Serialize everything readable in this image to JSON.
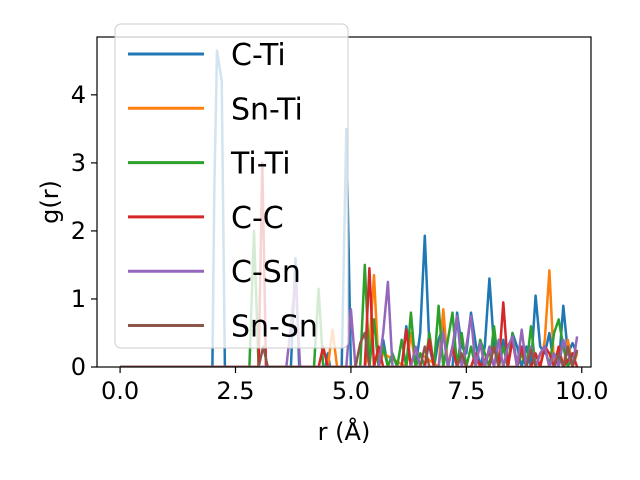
{
  "chart_data": {
    "type": "line",
    "xlabel": "r (Å)",
    "ylabel": "g(r)",
    "xlim": [
      -0.5,
      10.2
    ],
    "ylim": [
      0,
      4.85
    ],
    "xticks": [
      0.0,
      2.5,
      5.0,
      7.5,
      10.0
    ],
    "xtick_labels": [
      "0.0",
      "2.5",
      "5.0",
      "7.5",
      "10.0"
    ],
    "yticks": [
      0,
      1,
      2,
      3,
      4
    ],
    "ytick_labels": [
      "0",
      "1",
      "2",
      "3",
      "4"
    ],
    "grid": false,
    "legend_position": "upper-left",
    "series": [
      {
        "name": "C-Ti",
        "color": "#1f77b4",
        "x": [
          0,
          2.0,
          2.04,
          2.1,
          2.2,
          2.27,
          3.7,
          3.8,
          3.88,
          4.45,
          4.5,
          4.55,
          4.6,
          4.8,
          4.9,
          5.0,
          5.1,
          5.5,
          5.6,
          5.7,
          5.8,
          5.9,
          6.1,
          6.2,
          6.3,
          6.4,
          6.5,
          6.6,
          6.7,
          6.8,
          6.9,
          7.0,
          7.1,
          7.2,
          7.3,
          7.4,
          7.5,
          7.6,
          7.7,
          7.8,
          7.9,
          8.0,
          8.1,
          8.2,
          8.3,
          8.4,
          8.5,
          8.6,
          8.7,
          8.8,
          8.9,
          9.0,
          9.1,
          9.2,
          9.3,
          9.4,
          9.5,
          9.6,
          9.7,
          9.8,
          9.9
        ],
        "y": [
          0,
          0,
          2.6,
          4.65,
          4.2,
          0,
          0,
          1.6,
          0,
          0,
          0.2,
          0,
          0,
          0,
          3.5,
          0,
          0,
          0,
          0,
          0.4,
          0,
          0,
          0,
          0.6,
          0,
          0,
          0.5,
          1.93,
          0.3,
          0,
          0.4,
          0.6,
          0,
          0,
          0.8,
          0.3,
          0.2,
          0.8,
          0.35,
          0,
          0.3,
          1.3,
          0.3,
          0,
          0.4,
          0,
          0.5,
          0.3,
          0,
          0.3,
          0,
          1.05,
          0.3,
          0.2,
          0.5,
          0,
          0,
          0.9,
          0.2,
          0.35,
          0.2
        ]
      },
      {
        "name": "Sn-Ti",
        "color": "#ff7f0e",
        "x": [
          0,
          4.5,
          4.6,
          4.7,
          5.3,
          5.4,
          5.5,
          5.6,
          5.7,
          6.2,
          6.3,
          6.4,
          6.5,
          6.9,
          7.0,
          7.1,
          7.2,
          7.3,
          7.9,
          8.0,
          8.1,
          8.6,
          8.7,
          8.8,
          9.1,
          9.2,
          9.3,
          9.4,
          9.5,
          9.6,
          9.7,
          9.8,
          9.9
        ],
        "y": [
          0,
          0,
          0.55,
          0,
          0,
          0.3,
          1.35,
          0,
          0.2,
          0,
          0.5,
          0,
          0.2,
          0,
          0.85,
          0,
          0.3,
          0,
          0,
          0.25,
          0,
          0,
          0.3,
          0,
          0,
          0.4,
          1.42,
          0,
          0.3,
          0,
          0.4,
          0,
          0.2
        ]
      },
      {
        "name": "Ti-Ti",
        "color": "#2ca02c",
        "x": [
          0,
          2.8,
          2.9,
          3.0,
          4.2,
          4.3,
          4.4,
          5.2,
          5.3,
          5.4,
          5.5,
          5.6,
          5.7,
          5.8,
          5.9,
          6.0,
          6.1,
          6.2,
          6.3,
          6.4,
          6.5,
          6.6,
          6.7,
          6.8,
          6.9,
          7.0,
          7.1,
          7.2,
          7.3,
          7.4,
          7.5,
          7.6,
          7.7,
          7.8,
          7.9,
          8.0,
          8.1,
          8.2,
          8.3,
          8.4,
          8.5,
          8.6,
          8.7,
          8.8,
          8.9,
          9.0,
          9.1,
          9.2,
          9.3,
          9.4,
          9.5,
          9.6,
          9.7,
          9.8,
          9.9
        ],
        "y": [
          0,
          0,
          2.0,
          0,
          0,
          1.15,
          0,
          0,
          1.5,
          0,
          0.7,
          0,
          0.3,
          0,
          0.2,
          0,
          0.4,
          0,
          0.8,
          0,
          0.2,
          0,
          0.5,
          0,
          0.9,
          0,
          0.4,
          0.8,
          0,
          0.5,
          0,
          0.3,
          0,
          0.4,
          0.2,
          0,
          0.6,
          0,
          0.3,
          0,
          0.5,
          0,
          0.2,
          0,
          0.6,
          0,
          0.2,
          0.3,
          0,
          0.5,
          0.7,
          0.3,
          0,
          0.2,
          0.2
        ]
      },
      {
        "name": "C-C",
        "color": "#d62728",
        "x": [
          0,
          3.0,
          3.08,
          3.16,
          4.3,
          4.4,
          4.5,
          5.3,
          5.4,
          5.5,
          5.6,
          5.7,
          6.1,
          6.2,
          6.3,
          6.6,
          6.7,
          6.8,
          7.1,
          7.2,
          7.3,
          7.6,
          7.7,
          7.8,
          8.1,
          8.2,
          8.3,
          8.4,
          8.5,
          8.6,
          8.7,
          8.8,
          8.9,
          9.0,
          9.1,
          9.2,
          9.3,
          9.4,
          9.5,
          9.6,
          9.7,
          9.8,
          9.9
        ],
        "y": [
          0,
          0,
          3.0,
          0,
          0,
          0.3,
          0,
          0,
          1.45,
          0,
          0.3,
          0,
          0,
          0.55,
          0,
          0,
          0.4,
          0,
          0,
          0.3,
          0,
          0,
          0.2,
          0,
          0.3,
          0,
          0.95,
          0,
          0.4,
          0,
          0.3,
          0,
          0,
          0.2,
          0,
          0.3,
          0.2,
          0,
          0.3,
          0,
          0.1,
          0.2,
          0
        ]
      },
      {
        "name": "C-Sn",
        "color": "#9467bd",
        "x": [
          0,
          3.6,
          3.7,
          3.8,
          3.9,
          4.9,
          5.0,
          5.1,
          5.6,
          5.7,
          5.8,
          5.9,
          6.3,
          6.4,
          6.5,
          6.9,
          7.0,
          7.1,
          7.2,
          7.3,
          7.4,
          7.5,
          7.6,
          7.7,
          7.8,
          7.9,
          8.0,
          8.1,
          8.2,
          8.3,
          8.4,
          8.5,
          8.6,
          8.7,
          8.8,
          8.9,
          9.0,
          9.1,
          9.2,
          9.3,
          9.4,
          9.5,
          9.6,
          9.7,
          9.8,
          9.9
        ],
        "y": [
          0,
          0,
          0.6,
          1.3,
          0,
          0,
          0.85,
          0,
          0,
          0.5,
          1.25,
          0,
          0,
          0.3,
          0,
          0,
          0.5,
          0,
          0.3,
          0.75,
          0,
          0.3,
          0.75,
          0,
          0.35,
          0,
          0.3,
          0,
          0.4,
          0,
          0.3,
          0.45,
          0,
          0.55,
          0,
          0.3,
          0,
          0.2,
          0.3,
          0,
          0.2,
          0,
          0.4,
          0.2,
          0,
          0.45
        ]
      },
      {
        "name": "Sn-Sn",
        "color": "#8c564b",
        "x": [
          0,
          3.0,
          3.1,
          3.2,
          5.1,
          5.2,
          5.3,
          5.4,
          6.5,
          6.6,
          6.7,
          7.3,
          7.4,
          7.5,
          8.0,
          8.1,
          8.2,
          8.8,
          8.9,
          9.0,
          9.4,
          9.5,
          9.6,
          9.7,
          9.8,
          9.9
        ],
        "y": [
          0,
          0,
          0.3,
          0,
          0,
          0.35,
          0.5,
          0,
          0,
          0.3,
          0,
          0,
          0.2,
          0,
          0,
          0.3,
          0,
          0,
          0.25,
          0,
          0,
          0.2,
          0,
          0.3,
          0,
          0.25
        ]
      }
    ]
  }
}
